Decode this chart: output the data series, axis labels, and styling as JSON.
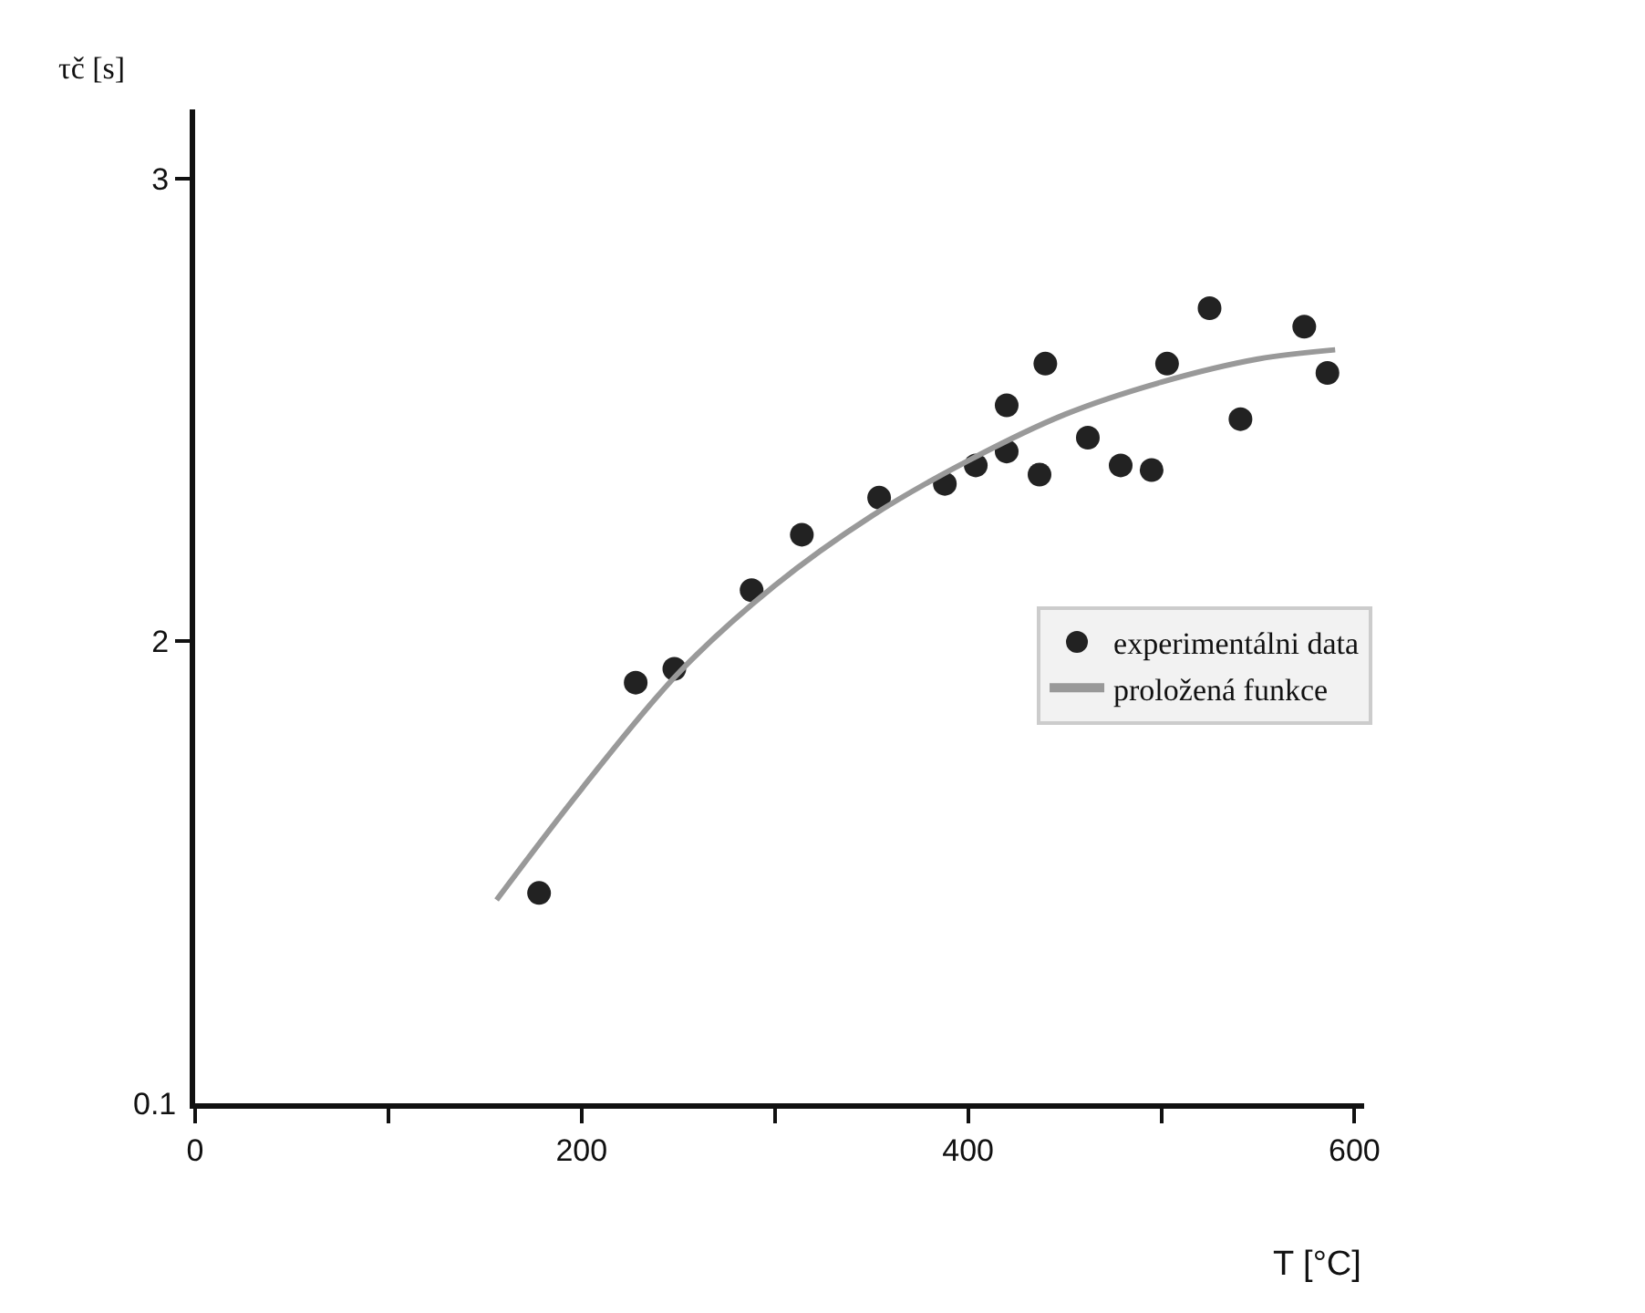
{
  "chart_data": {
    "type": "scatter",
    "xlabel": "T [°C]",
    "ylabel": "τč [s]",
    "xlim": [
      0,
      605
    ],
    "xticks": [
      0,
      {
        "value": 100,
        "label": null
      },
      200,
      {
        "value": 300,
        "label": null
      },
      400,
      {
        "value": 500,
        "label": null
      },
      600
    ],
    "ylim": [
      1,
      3.15
    ],
    "yticks": [
      2,
      3
    ],
    "annotations": [
      "0.1"
    ],
    "legend": "right",
    "marker": "circle",
    "series": [
      {
        "name": "experimentálni data",
        "color": "#222222",
        "x": [
          178,
          228,
          248,
          288,
          314,
          354,
          388,
          404,
          420,
          420,
          437,
          440,
          462,
          479,
          495,
          503,
          525,
          541,
          574,
          586
        ],
        "values": [
          1.455,
          1.91,
          1.94,
          2.11,
          2.23,
          2.31,
          2.34,
          2.38,
          2.41,
          2.51,
          2.36,
          2.6,
          2.44,
          2.38,
          2.37,
          2.6,
          2.72,
          2.48,
          2.68,
          2.58
        ]
      },
      {
        "name": "proložená funkce",
        "type": "line",
        "color": "#999999",
        "marker": "none",
        "line_style": "solid",
        "x": [
          156,
          200,
          250,
          300,
          350,
          400,
          450,
          500,
          550,
          590
        ],
        "values": [
          1.44,
          1.68,
          1.93,
          2.12,
          2.27,
          2.39,
          2.49,
          2.56,
          2.61,
          2.63
        ]
      }
    ]
  }
}
